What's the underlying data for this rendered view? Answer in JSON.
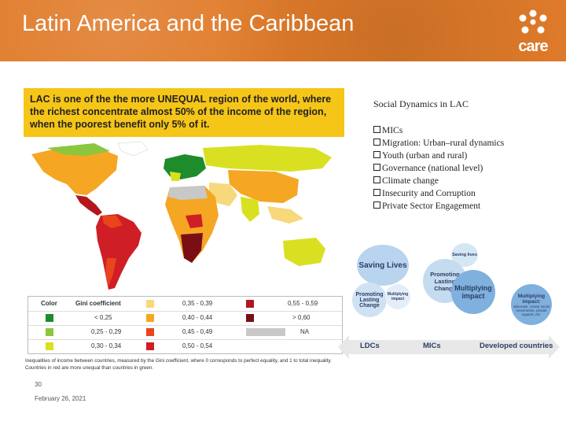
{
  "header": {
    "title": "Latin America and the Caribbean",
    "logo_text": "care"
  },
  "callout": {
    "text": "LAC is one of the the more UNEQUAL region of the world, where the richest concentrate almost 50% of the income of the region, when the poorest benefit only 5% of it."
  },
  "legend": {
    "color_header": "Color",
    "gini_header": "Gini coefficient",
    "rows": [
      [
        {
          "label": "< 0,25",
          "color": "#1f8c2b"
        },
        {
          "label": "0,40 - 0,44",
          "color": "#f5a623"
        },
        {
          "label": "> 0,60",
          "color": "#7a0e14"
        }
      ],
      [
        {
          "label": "0,25 - 0,29",
          "color": "#8cc63f"
        },
        {
          "label": "0,45 - 0,49",
          "color": "#e8451c"
        },
        {
          "label": "NA",
          "color": "#c8c8c8"
        }
      ],
      [
        {
          "label": "0,30 - 0,34",
          "color": "#d9e021"
        },
        {
          "label": "0,50 - 0,54",
          "color": "#d01e26"
        },
        {
          "label": "",
          "color": ""
        }
      ]
    ],
    "top_row": [
      {
        "label": "0,35 - 0,39",
        "color": "#f7d87a"
      },
      {
        "label": "0,55 - 0,59",
        "color": "#b3161c"
      }
    ]
  },
  "footnote": "Inequalities of income between countries, measured by the Gini coefficient, where 0 corresponds to perfect equality, and 1 to total inequality. Countries in red are more unequal than countries in green.",
  "page_number": "30",
  "date": "February 26, 2021",
  "right": {
    "heading": "Social Dynamics in LAC",
    "bullets": [
      "MICs",
      "Migration: Urban–rural dynamics",
      "Youth (urban and rural)",
      "Governance (national level)",
      "Climate change",
      "Insecurity and Corruption",
      "Private Sector Engagement"
    ]
  },
  "diagram": {
    "saving_lives": "Saving Lives",
    "promoting_lasting_change": "Promoting Lasting Change",
    "multiplying_impact_small": "Multiplying impact",
    "saving_lives_small": "Saving lives",
    "promoting_lasting_change_mid": "Promoting Lasting Change",
    "multiplying_impact": "Multiplying impact",
    "multiplying_impact_right": "Multiplying impact:",
    "multiplying_impact_detail": "advocate, create social movements, private support, etc.",
    "arrow_left": "LDCs",
    "arrow_mid": "MICs",
    "arrow_right": "Developed countries"
  },
  "colors": {
    "header": "#e07b2a",
    "callout": "#f5c518",
    "bubble_light": "#b8d4ee",
    "bubble_dark": "#7fb0de",
    "arrow": "#e8e8e8"
  }
}
